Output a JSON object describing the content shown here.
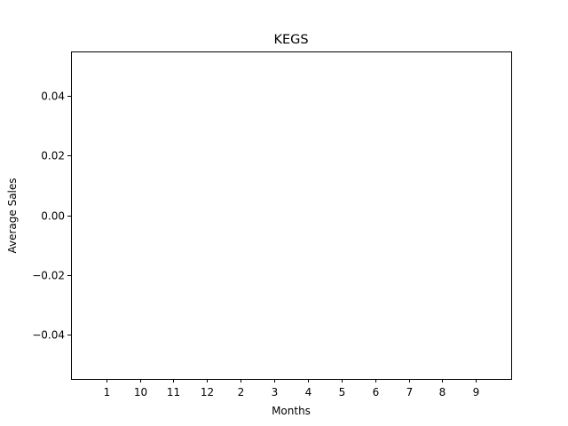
{
  "chart_data": {
    "type": "bar",
    "title": "KEGS",
    "xlabel": "Months",
    "ylabel": "Average Sales",
    "categories": [
      "1",
      "10",
      "11",
      "12",
      "2",
      "3",
      "4",
      "5",
      "6",
      "7",
      "8",
      "9"
    ],
    "values": [
      0,
      0,
      0,
      0,
      0,
      0,
      0,
      0,
      0,
      0,
      0,
      0
    ],
    "ylim": [
      -0.055,
      0.055
    ],
    "yticks": [
      0.04,
      0.02,
      0.0,
      -0.02,
      -0.04
    ],
    "ytick_labels": [
      "0.04",
      "0.02",
      "0.00",
      "−0.02",
      "−0.04"
    ],
    "grid": false,
    "legend": false
  }
}
